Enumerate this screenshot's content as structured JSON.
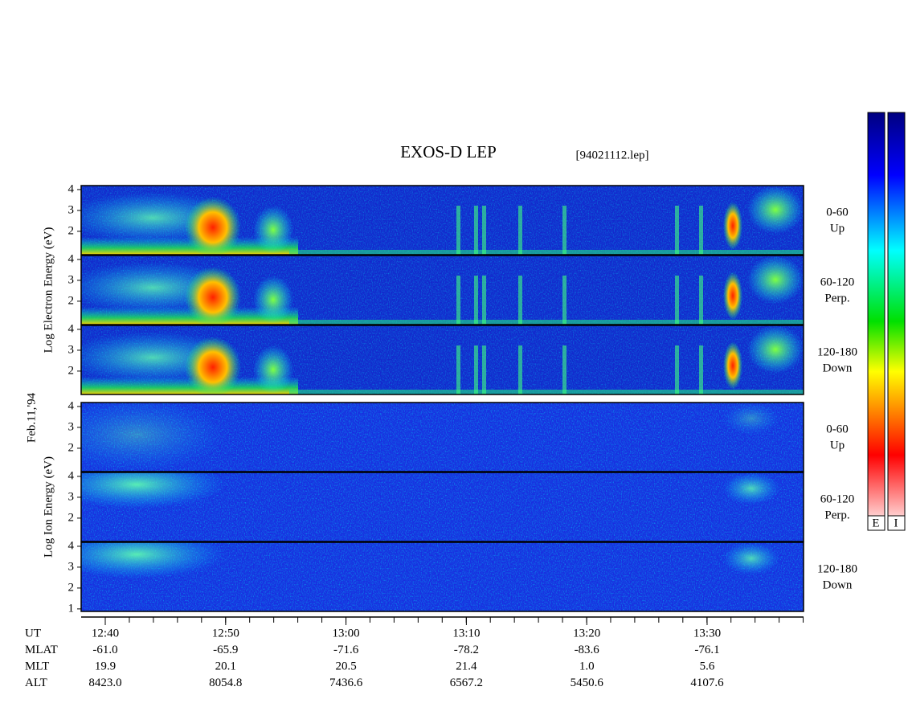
{
  "title": "EXOS-D LEP",
  "file": "[94021112.lep]",
  "date": "Feb.11,'94",
  "ylim": [
    0.88,
    4.19
  ],
  "species": [
    {
      "axis_label": "Log  Electron  Energy (eV)",
      "panels": [
        {
          "yticks": [
            2,
            3,
            4
          ],
          "pitch": "0-60",
          "direction": "Up"
        },
        {
          "yticks": [
            2,
            3,
            4
          ],
          "pitch": "60-120",
          "direction": "Perp."
        },
        {
          "yticks": [
            2,
            3,
            4
          ],
          "pitch": "120-180",
          "direction": "Down"
        }
      ]
    },
    {
      "axis_label": "Log  Ion  Energy (eV)",
      "panels": [
        {
          "yticks": [
            2,
            3,
            4
          ],
          "pitch": "0-60",
          "direction": "Up"
        },
        {
          "yticks": [
            2,
            3,
            4
          ],
          "pitch": "60-120",
          "direction": "Perp."
        },
        {
          "yticks": [
            1,
            2,
            3,
            4
          ],
          "pitch": "120-180",
          "direction": "Down"
        }
      ]
    }
  ],
  "time_axis": {
    "rows": [
      {
        "label": "UT",
        "values": [
          "12:40",
          "12:50",
          "13:00",
          "13:10",
          "13:20",
          "13:30"
        ]
      },
      {
        "label": "MLAT",
        "values": [
          "-61.0",
          "-65.9",
          "-71.6",
          "-78.2",
          "-83.6",
          "-76.1"
        ]
      },
      {
        "label": "MLT",
        "values": [
          "19.9",
          "20.1",
          "20.5",
          "21.4",
          "1.0",
          "5.6"
        ]
      },
      {
        "label": "ALT",
        "values": [
          "8423.0",
          "8054.8",
          "7436.6",
          "6567.2",
          "5450.6",
          "4107.6"
        ]
      }
    ]
  },
  "colorbar": {
    "labels": [
      "E",
      "I"
    ]
  }
}
